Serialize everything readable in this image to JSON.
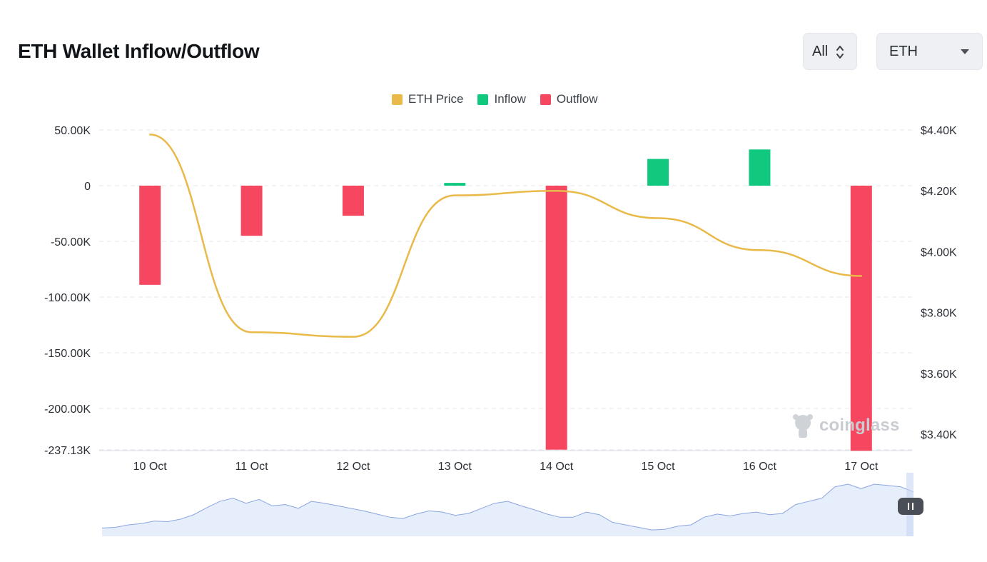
{
  "header": {
    "title": "ETH Wallet Inflow/Outflow",
    "range_select": {
      "value": "All"
    },
    "coin_select": {
      "value": "ETH"
    }
  },
  "legend": [
    {
      "label": "ETH Price",
      "color": "#e9b949"
    },
    {
      "label": "Inflow",
      "color": "#10c97f"
    },
    {
      "label": "Outflow",
      "color": "#f5475f"
    }
  ],
  "watermark": "coinglass",
  "chart_data": {
    "type": "bar",
    "categories": [
      "10 Oct",
      "11 Oct",
      "12 Oct",
      "13 Oct",
      "14 Oct",
      "15 Oct",
      "16 Oct",
      "17 Oct"
    ],
    "series": [
      {
        "name": "Inflow",
        "type": "bar",
        "axis": "left",
        "color": "#10c97f",
        "values": [
          0,
          0,
          0,
          2500,
          0,
          24000,
          32500,
          0
        ]
      },
      {
        "name": "Outflow",
        "type": "bar",
        "axis": "left",
        "color": "#f5475f",
        "values": [
          -89000,
          -45000,
          -27000,
          0,
          -237000,
          0,
          0,
          -238000
        ]
      },
      {
        "name": "ETH Price",
        "type": "line",
        "axis": "right",
        "color": "#e9b949",
        "values": [
          4385,
          3735,
          3720,
          4185,
          4200,
          4110,
          4005,
          3920
        ]
      }
    ],
    "y_left": {
      "min": -237130,
      "max": 50000,
      "ticks": [
        50000,
        0,
        -50000,
        -100000,
        -150000,
        -200000,
        -237130
      ],
      "tick_labels": [
        "50.00K",
        "0",
        "-50.00K",
        "-100.00K",
        "-150.00K",
        "-200.00K",
        "-237.13K"
      ]
    },
    "y_right": {
      "min": 3340,
      "max": 4400,
      "ticks": [
        4400,
        4200,
        4000,
        3800,
        3600,
        3400
      ],
      "tick_labels": [
        "$4.40K",
        "$4.20K",
        "$4.00K",
        "$3.80K",
        "$3.60K",
        "$3.40K"
      ]
    },
    "grid": true,
    "legend_position": "top-center",
    "navigator": {
      "values": [
        0.13,
        0.14,
        0.18,
        0.2,
        0.24,
        0.23,
        0.27,
        0.34,
        0.45,
        0.55,
        0.6,
        0.52,
        0.58,
        0.48,
        0.5,
        0.44,
        0.55,
        0.52,
        0.48,
        0.44,
        0.4,
        0.35,
        0.3,
        0.28,
        0.35,
        0.4,
        0.38,
        0.33,
        0.36,
        0.44,
        0.52,
        0.55,
        0.48,
        0.42,
        0.35,
        0.3,
        0.3,
        0.38,
        0.34,
        0.22,
        0.18,
        0.14,
        0.1,
        0.11,
        0.16,
        0.18,
        0.3,
        0.35,
        0.32,
        0.36,
        0.38,
        0.34,
        0.36,
        0.5,
        0.55,
        0.6,
        0.78,
        0.82,
        0.75,
        0.82,
        0.8,
        0.78,
        0.7
      ],
      "color": "#8aa6e0",
      "fill": "#e6edfb"
    }
  }
}
